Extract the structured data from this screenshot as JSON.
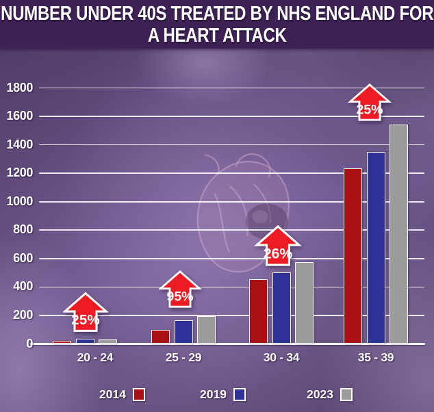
{
  "title": {
    "text": "NUMBER UNDER 40S TREATED BY NHS ENGLAND FOR A HEART ATTACK",
    "line1": "NUMBER UNDER 40S TREATED BY NHS ENGLAND FOR",
    "line2": "A HEART ATTACK"
  },
  "colors": {
    "title_bar_bg": "#3e2255",
    "background_purple": "#6a5589",
    "grid_line": "#ffffff",
    "axis_text": "#ffffff",
    "arrow_fill": "#ec1b24",
    "arrow_border": "#ffffff",
    "series_2014": "#a81016",
    "series_2019": "#2e3198",
    "series_2023": "#9c9c9c"
  },
  "chart_data": {
    "type": "bar",
    "title": "NUMBER UNDER 40S TREATED BY NHS ENGLAND FOR A HEART ATTACK",
    "categories": [
      "20 - 24",
      "25 - 29",
      "30 - 34",
      "35 - 39"
    ],
    "series": [
      {
        "name": "2014",
        "color": "#a81016",
        "values": [
          24,
          99,
          456,
          1234
        ]
      },
      {
        "name": "2019",
        "color": "#2e3198",
        "values": [
          35,
          165,
          503,
          1349
        ]
      },
      {
        "name": "2023",
        "color": "#9c9c9c",
        "values": [
          30,
          193,
          574,
          1541
        ]
      }
    ],
    "annotations": [
      {
        "category": "20 - 24",
        "label": "25%"
      },
      {
        "category": "25 - 29",
        "label": "95%"
      },
      {
        "category": "30 - 34",
        "label": "26%"
      },
      {
        "category": "35 - 39",
        "label": "25%"
      }
    ],
    "y_axis": {
      "min": 0,
      "max": 1800,
      "tick_step": 200,
      "ticks": [
        0,
        200,
        400,
        600,
        800,
        1000,
        1200,
        1400,
        1600,
        1800
      ]
    },
    "grid": true,
    "legend_position": "bottom",
    "legend_labels": [
      "2014",
      "2019",
      "2023"
    ]
  }
}
